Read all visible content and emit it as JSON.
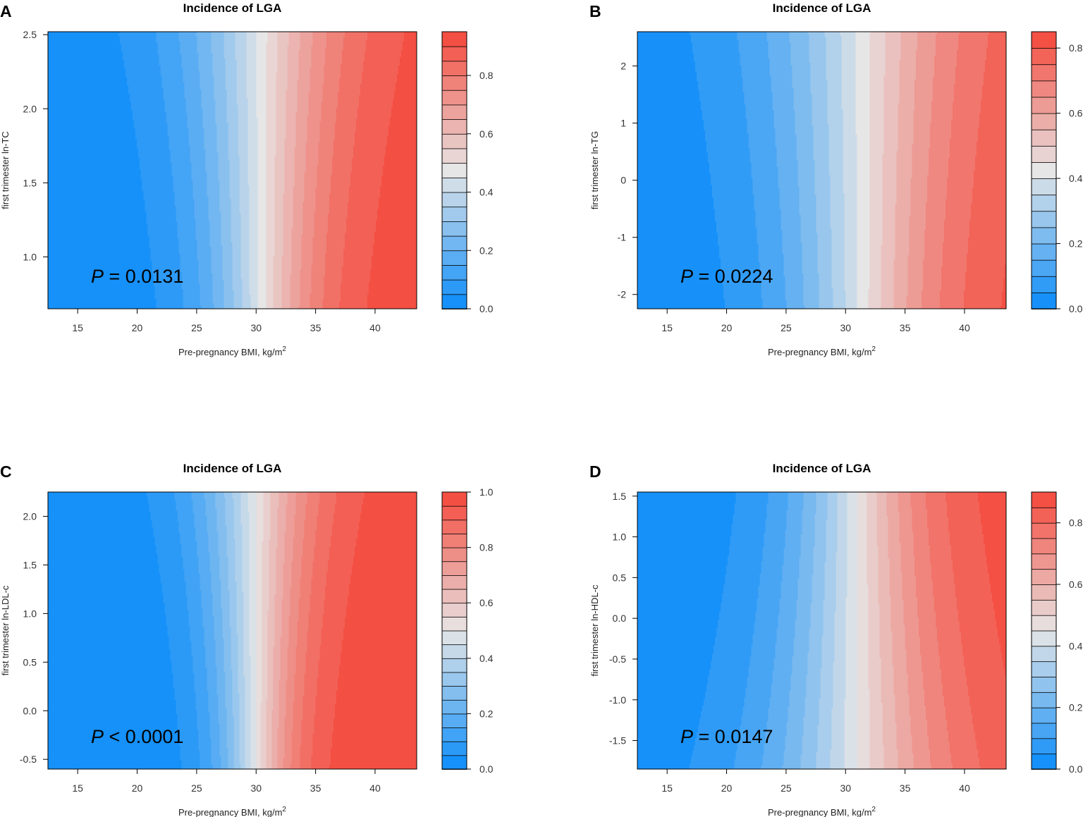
{
  "figure": "Incidence of LGA contour plots",
  "chart_data": [
    {
      "type": "heatmap",
      "panel": "A",
      "title": "Incidence of LGA",
      "xlabel": "Pre-pregnancy BMI, kg/m",
      "xlabel_sup": "2",
      "ylabel": "first trimester ln-TC",
      "xlim": [
        12.5,
        43.5
      ],
      "ylim": [
        0.65,
        2.52
      ],
      "xticks": [
        "15",
        "20",
        "25",
        "30",
        "35",
        "40"
      ],
      "yticks": [
        "1.0",
        "1.5",
        "2.0",
        "2.5"
      ],
      "colorbar": {
        "range": [
          0,
          0.95
        ],
        "levels": 19,
        "ticks": [
          "0.0",
          "0.2",
          "0.4",
          "0.6",
          "0.8"
        ]
      },
      "annotation": {
        "italic": "P",
        "text": " = 0.0131"
      },
      "model": {
        "k": 0.24,
        "x0": 30.5,
        "c": 0.28,
        "ypivot": 2.5
      }
    },
    {
      "type": "heatmap",
      "panel": "B",
      "title": "Incidence of LGA",
      "xlabel": "Pre-pregnancy BMI, kg/m",
      "xlabel_sup": "2",
      "ylabel": "first trimester ln-TG",
      "xlim": [
        12.5,
        43.5
      ],
      "ylim": [
        -2.25,
        2.6
      ],
      "xticks": [
        "15",
        "20",
        "25",
        "30",
        "35",
        "40"
      ],
      "yticks": [
        "-2",
        "-1",
        "0",
        "1",
        "2"
      ],
      "colorbar": {
        "range": [
          0,
          0.85
        ],
        "levels": 17,
        "ticks": [
          "0.0",
          "0.2",
          "0.4",
          "0.6",
          "0.8"
        ]
      },
      "annotation": {
        "italic": "P",
        "text": " = 0.0224"
      },
      "model": {
        "k": 0.19,
        "x0": 31.5,
        "c": 0.06,
        "ypivot": 2.6
      }
    },
    {
      "type": "heatmap",
      "panel": "C",
      "title": "Incidence of LGA",
      "xlabel": "Pre-pregnancy BMI, kg/m",
      "xlabel_sup": "2",
      "ylabel": "first trimester ln-LDL-c",
      "xlim": [
        12.5,
        43.5
      ],
      "ylim": [
        -0.6,
        2.25
      ],
      "xticks": [
        "15",
        "20",
        "25",
        "30",
        "35",
        "40"
      ],
      "yticks": [
        "-0.5",
        "0.0",
        "0.5",
        "1.0",
        "1.5",
        "2.0"
      ],
      "colorbar": {
        "range": [
          0,
          1.0
        ],
        "levels": 20,
        "ticks": [
          "0.0",
          "0.2",
          "0.4",
          "0.6",
          "0.8",
          "1.0"
        ]
      },
      "annotation": {
        "italic": "P",
        "text": " < 0.0001"
      },
      "model": {
        "k": 0.32,
        "x0": 30.0,
        "c": 0.32,
        "ypivot": 2.25
      }
    },
    {
      "type": "heatmap",
      "panel": "D",
      "title": "Incidence of LGA",
      "xlabel": "Pre-pregnancy BMI, kg/m",
      "xlabel_sup": "2",
      "ylabel": "first trimester ln-HDL-c",
      "xlim": [
        12.5,
        43.5
      ],
      "ylim": [
        -1.85,
        1.55
      ],
      "xticks": [
        "15",
        "20",
        "25",
        "30",
        "35",
        "40"
      ],
      "yticks": [
        "-1.5",
        "-1.0",
        "-0.5",
        "0.0",
        "0.5",
        "1.0",
        "1.5"
      ],
      "colorbar": {
        "range": [
          0,
          0.9
        ],
        "levels": 18,
        "ticks": [
          "0.0",
          "0.2",
          "0.4",
          "0.6",
          "0.8"
        ]
      },
      "annotation": {
        "italic": "P",
        "text": " = 0.0147"
      },
      "model": {
        "k": 0.2,
        "x0": 31.0,
        "c": 0.14,
        "ypivot": -1.85
      }
    }
  ],
  "colors": {
    "low": "#0a8cfa",
    "mid": "#e6e6e6",
    "high": "#f5473a"
  }
}
